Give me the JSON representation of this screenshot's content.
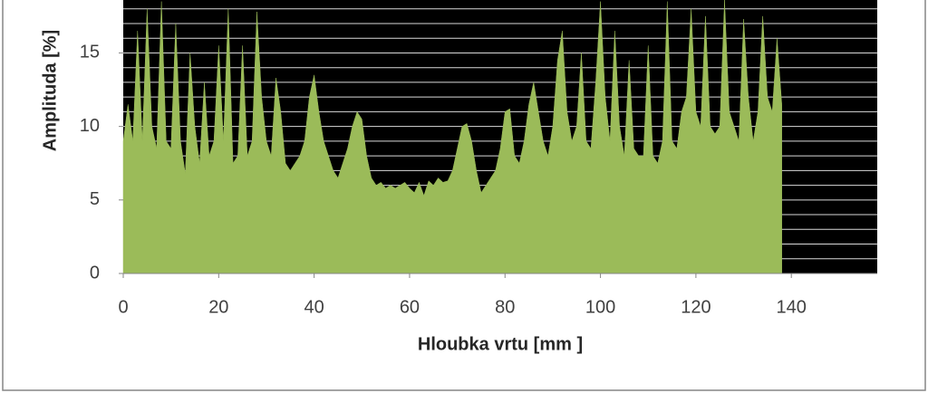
{
  "chart_data": {
    "type": "area",
    "x_label": "Hloubka vrtu [mm ]",
    "y_label": "Amplituda [%]",
    "color": "#9bbb59",
    "background": "#000000",
    "grid": true,
    "xlim": [
      0,
      158
    ],
    "ylim": [
      0,
      18.6
    ],
    "xticks": [
      0,
      20,
      40,
      60,
      80,
      100,
      120,
      140
    ],
    "yticks": [
      0,
      5,
      10,
      15
    ],
    "y_grid_ticks": [
      0,
      1,
      2,
      3,
      4,
      5,
      6,
      7,
      8,
      9,
      10,
      11,
      12,
      13,
      14,
      15,
      16,
      17,
      18
    ],
    "x": [
      0,
      1,
      2,
      3,
      4,
      5,
      6,
      7,
      8,
      9,
      10,
      11,
      12,
      13,
      14,
      15,
      16,
      17,
      18,
      19,
      20,
      21,
      22,
      23,
      24,
      25,
      26,
      27,
      28,
      29,
      30,
      31,
      32,
      33,
      34,
      35,
      36,
      37,
      38,
      39,
      40,
      41,
      42,
      43,
      44,
      45,
      46,
      47,
      48,
      49,
      50,
      51,
      52,
      53,
      54,
      55,
      56,
      57,
      58,
      59,
      60,
      61,
      62,
      63,
      64,
      65,
      66,
      67,
      68,
      69,
      70,
      71,
      72,
      73,
      74,
      75,
      76,
      77,
      78,
      79,
      80,
      81,
      82,
      83,
      84,
      85,
      86,
      87,
      88,
      89,
      90,
      91,
      92,
      93,
      94,
      95,
      96,
      97,
      98,
      99,
      100,
      101,
      102,
      103,
      104,
      105,
      106,
      107,
      108,
      109,
      110,
      111,
      112,
      113,
      114,
      115,
      116,
      117,
      118,
      119,
      120,
      121,
      122,
      123,
      124,
      125,
      126,
      127,
      128,
      129,
      130,
      131,
      132,
      133,
      134,
      135,
      136,
      137,
      138
    ],
    "values": [
      9,
      11.5,
      9,
      16.5,
      9,
      18,
      10,
      8.5,
      18.5,
      9,
      8.5,
      17,
      9,
      6.8,
      15,
      10,
      7.5,
      13,
      8,
      9,
      15.5,
      9,
      18,
      7.5,
      8,
      15.5,
      8,
      9,
      17.8,
      12,
      9,
      8,
      13.3,
      11,
      7.5,
      7,
      7.5,
      8,
      9,
      12,
      13.5,
      11,
      9,
      8,
      7,
      6.5,
      7.5,
      8.5,
      10,
      11,
      10.5,
      8,
      6.5,
      6,
      6.2,
      5.8,
      6,
      5.8,
      6,
      6.2,
      5.8,
      5.5,
      6.2,
      5.3,
      6.3,
      6,
      6.5,
      6.2,
      6.3,
      7,
      8.5,
      10,
      10.2,
      9,
      7,
      5.5,
      6,
      6.5,
      7,
      8.5,
      11,
      11.2,
      8,
      7.5,
      9,
      11.5,
      13,
      11,
      9,
      8,
      10,
      14.5,
      16.5,
      11,
      9,
      10,
      15,
      9,
      8.5,
      13,
      18.5,
      12,
      9,
      16.5,
      10,
      8,
      14.5,
      8.5,
      8,
      8,
      15.5,
      8,
      7.5,
      9,
      18.5,
      9,
      8.5,
      11,
      12,
      18,
      11,
      10,
      17.5,
      10,
      9.5,
      10,
      18.6,
      11,
      10,
      9,
      17.3,
      12,
      9,
      11,
      17.5,
      12,
      11,
      16,
      11.5
    ]
  }
}
